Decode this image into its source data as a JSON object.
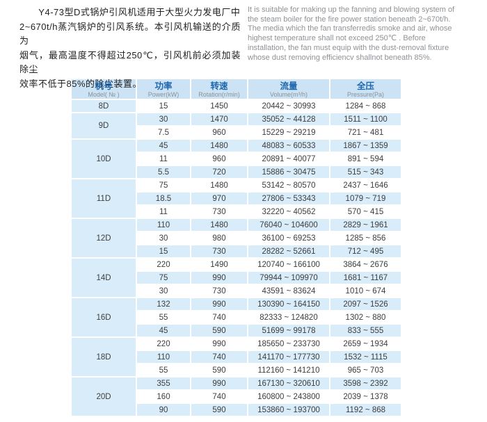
{
  "intro": {
    "chinese": "Y4-73型D式锅炉引风机适用于大型火力发电厂中\n2~670t/h蒸汽锅炉的引风系统。本引风机输送的介质为\n烟气，最高温度不得超过250℃，引风机前必须加装除尘\n效率不低于85%的除尘装置。",
    "english": "It is suitable for making up the fanning and blowing system of\nthe steam boiler for the fire power station beneath 2~670t/h.\nThe media which the fan transferredis smoke and air, whose\nhighest  temperature  shall  not  exceed  250℃ .  Before\ninstallation, the fan must equip with the dust-removal fixture\nwhose dust removing efficiencv shallnot beneath 85%."
  },
  "table": {
    "columns": [
      {
        "key": "model",
        "zh": "机号",
        "en": "Model( № )"
      },
      {
        "key": "power",
        "zh": "功率",
        "en": "Power(kW)"
      },
      {
        "key": "rotation",
        "zh": "转速",
        "en": "Rotation(r/min)"
      },
      {
        "key": "volume",
        "zh": "流量",
        "en": "Volume(m³/h)"
      },
      {
        "key": "pressure",
        "zh": "全压",
        "en": "Pressure(Pa)"
      }
    ],
    "groups": [
      {
        "model": "8D",
        "rows": [
          [
            "15",
            "1450",
            "20442 ~ 30993",
            "1284 ~ 868"
          ]
        ]
      },
      {
        "model": "9D",
        "rows": [
          [
            "30",
            "1470",
            "35052 ~ 44128",
            "1511 ~ 1100"
          ],
          [
            "7.5",
            "960",
            "15229 ~ 29219",
            "721 ~ 481"
          ]
        ]
      },
      {
        "model": "10D",
        "rows": [
          [
            "45",
            "1480",
            "48083 ~ 60533",
            "1867 ~ 1359"
          ],
          [
            "11",
            "960",
            "20891 ~ 40077",
            "891 ~ 594"
          ],
          [
            "5.5",
            "720",
            "15886 ~ 30475",
            "515 ~ 343"
          ]
        ]
      },
      {
        "model": "11D",
        "rows": [
          [
            "75",
            "1480",
            "53142 ~ 80570",
            "2437 ~ 1646"
          ],
          [
            "18.5",
            "970",
            "27806 ~ 53343",
            "1079 ~ 719"
          ],
          [
            "11",
            "730",
            "32220 ~ 40562",
            "570 ~ 415"
          ]
        ]
      },
      {
        "model": "12D",
        "rows": [
          [
            "110",
            "1480",
            "76040 ~ 104600",
            "2829 ~ 1961"
          ],
          [
            "30",
            "980",
            "36100 ~ 69253",
            "1285 ~ 856"
          ],
          [
            "15",
            "730",
            "28282 ~ 52661",
            "712 ~ 495"
          ]
        ]
      },
      {
        "model": "14D",
        "rows": [
          [
            "220",
            "1490",
            "120740 ~ 166100",
            "3864 ~ 2676"
          ],
          [
            "75",
            "990",
            "79944 ~ 109970",
            "1681 ~ 1167"
          ],
          [
            "30",
            "730",
            "43591 ~ 83624",
            "1010 ~ 674"
          ]
        ]
      },
      {
        "model": "16D",
        "rows": [
          [
            "132",
            "990",
            "130390 ~ 164150",
            "2097 ~ 1526"
          ],
          [
            "55",
            "740",
            "82333 ~ 124820",
            "1302 ~ 880"
          ],
          [
            "45",
            "590",
            "51699 ~ 99178",
            "833 ~ 555"
          ]
        ]
      },
      {
        "model": "18D",
        "rows": [
          [
            "220",
            "990",
            "185650 ~ 233730",
            "2659 ~ 1934"
          ],
          [
            "110",
            "740",
            "141170 ~ 177730",
            "1532 ~ 1115"
          ],
          [
            "55",
            "590",
            "112160 ~ 141210",
            "965 ~ 703"
          ]
        ]
      },
      {
        "model": "20D",
        "rows": [
          [
            "355",
            "990",
            "167130 ~ 320610",
            "3598 ~ 2392"
          ],
          [
            "160",
            "740",
            "160800 ~ 243800",
            "2039 ~ 1378"
          ],
          [
            "90",
            "590",
            "153860 ~ 193700",
            "1192 ~ 868"
          ]
        ]
      }
    ]
  },
  "colors": {
    "header_bg": "#cbe3f4",
    "row_highlight_bg": "#d9ecf9",
    "header_text_blue": "#1f67ad",
    "subheader_text_gray": "#8d9195",
    "body_text": "#3d3d3d",
    "english_text_gray": "#8e9296"
  }
}
